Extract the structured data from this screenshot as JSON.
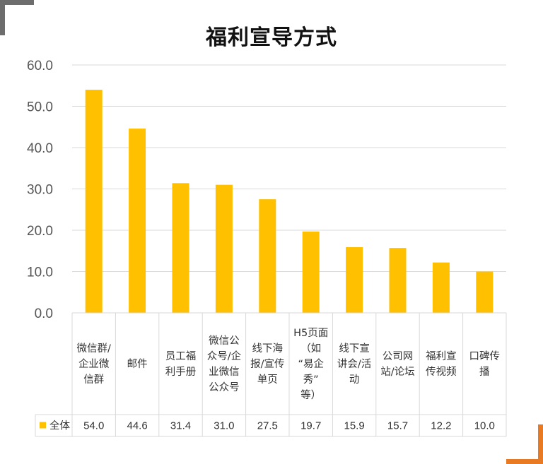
{
  "chart_data": {
    "type": "bar",
    "title": "福利宣导方式",
    "categories": [
      [
        "微信群/",
        "企业微",
        "信群"
      ],
      [
        "邮件"
      ],
      [
        "员工福",
        "利手册"
      ],
      [
        "微信公",
        "众号/企",
        "业微信",
        "公众号"
      ],
      [
        "线下海",
        "报/宣传",
        "单页"
      ],
      [
        "H5页面",
        "（如",
        "“易企",
        "秀”",
        "等）"
      ],
      [
        "线下宣",
        "讲会/活",
        "动"
      ],
      [
        "公司网",
        "站/论坛"
      ],
      [
        "福利宣",
        "传视频"
      ],
      [
        "口碑传",
        "播"
      ]
    ],
    "series": [
      {
        "name": "全体",
        "values": [
          54.0,
          44.6,
          31.4,
          31.0,
          27.5,
          19.7,
          15.9,
          15.7,
          12.2,
          10.0
        ]
      }
    ],
    "value_labels": [
      "54.0",
      "44.6",
      "31.4",
      "31.0",
      "27.5",
      "19.7",
      "15.9",
      "15.7",
      "12.2",
      "10.0"
    ],
    "y_ticks": [
      "0.0",
      "10.0",
      "20.0",
      "30.0",
      "40.0",
      "50.0",
      "60.0"
    ],
    "ylim": [
      0,
      60
    ],
    "grid": true,
    "data_table": true,
    "bar_color": "#FFC000",
    "grid_color": "#D9D9D9"
  }
}
